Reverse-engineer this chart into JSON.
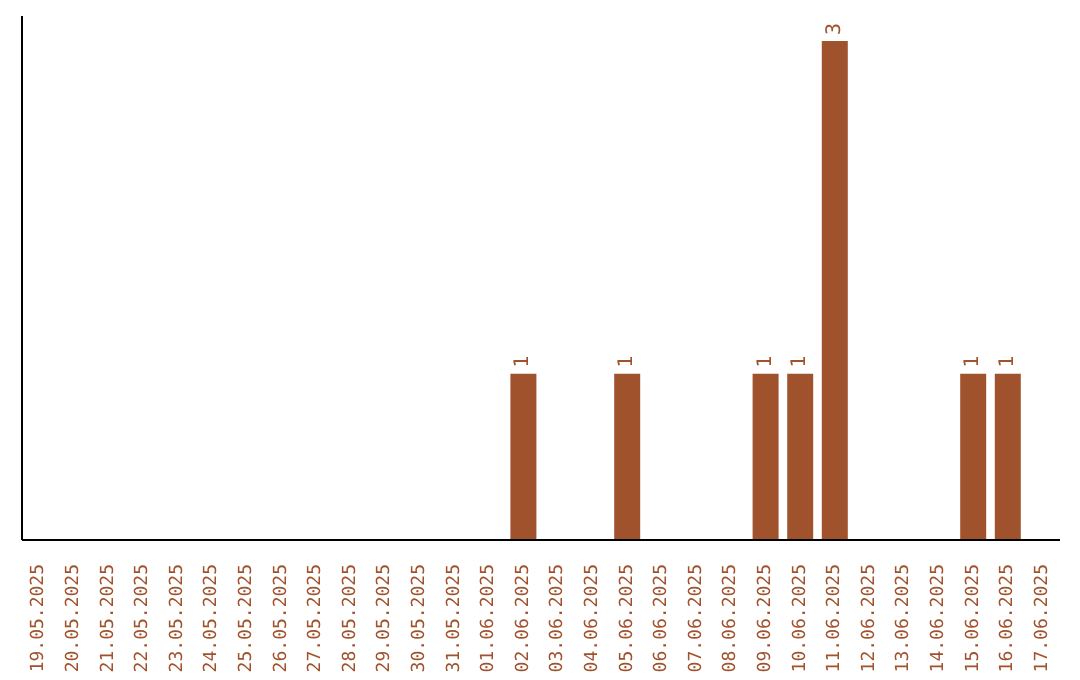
{
  "chart_data": {
    "type": "bar",
    "categories": [
      "19.05.2025",
      "20.05.2025",
      "21.05.2025",
      "22.05.2025",
      "23.05.2025",
      "24.05.2025",
      "25.05.2025",
      "26.05.2025",
      "27.05.2025",
      "28.05.2025",
      "29.05.2025",
      "30.05.2025",
      "31.05.2025",
      "01.06.2025",
      "02.06.2025",
      "03.06.2025",
      "04.06.2025",
      "05.06.2025",
      "06.06.2025",
      "07.06.2025",
      "08.06.2025",
      "09.06.2025",
      "10.06.2025",
      "11.06.2025",
      "12.06.2025",
      "13.06.2025",
      "14.06.2025",
      "15.06.2025",
      "16.06.2025",
      "17.06.2025"
    ],
    "values": [
      null,
      null,
      null,
      null,
      null,
      null,
      null,
      null,
      null,
      null,
      null,
      null,
      null,
      null,
      1,
      null,
      null,
      1,
      null,
      null,
      null,
      1,
      1,
      3,
      null,
      null,
      null,
      1,
      1,
      null
    ],
    "color": "#a0522d",
    "data_labels": true
  }
}
